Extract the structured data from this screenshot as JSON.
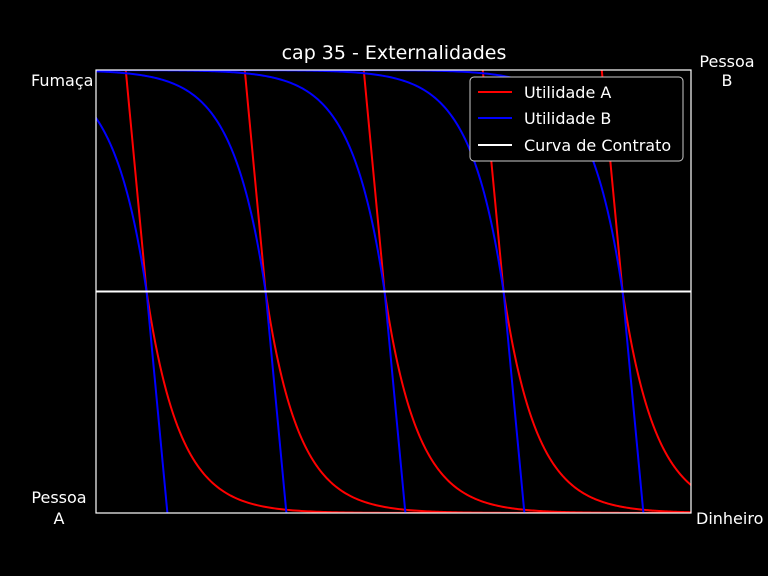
{
  "chart_data": {
    "type": "line",
    "title": "cap 35 - Externalidades",
    "xlabel": "",
    "ylabel": "",
    "corner_labels": {
      "top_left": "Fumaça",
      "top_right": [
        "Pessoa",
        "B"
      ],
      "bottom_left": [
        "Pessoa",
        "A"
      ],
      "bottom_right": "Dinheiro"
    },
    "xlim": [
      0,
      10
    ],
    "ylim": [
      0,
      1
    ],
    "grid": false,
    "ticks": false,
    "legend_position": "top-right",
    "series": [
      {
        "name": "Utilidade A",
        "color": "#ff0000",
        "kind": "indifference_A",
        "curves": [
          {
            "x_top": 0.5,
            "x_mid": 0.85
          },
          {
            "x_top": 2.5,
            "x_mid": 2.85
          },
          {
            "x_top": 4.5,
            "x_mid": 4.85
          },
          {
            "x_top": 6.5,
            "x_mid": 6.85
          },
          {
            "x_top": 8.5,
            "x_mid": 8.85
          }
        ]
      },
      {
        "name": "Utilidade B",
        "color": "#0000ff",
        "kind": "indifference_B",
        "curves": [
          {
            "x_mid": 0.85,
            "x_bottom": 1.2
          },
          {
            "x_mid": 2.85,
            "x_bottom": 3.2
          },
          {
            "x_mid": 4.85,
            "x_bottom": 5.2
          },
          {
            "x_mid": 6.85,
            "x_bottom": 7.2
          },
          {
            "x_mid": 8.85,
            "x_bottom": 9.2
          }
        ]
      },
      {
        "name": "Curva de Contrato",
        "color": "#ffffff",
        "kind": "horizontal",
        "y": 0.5
      }
    ]
  }
}
